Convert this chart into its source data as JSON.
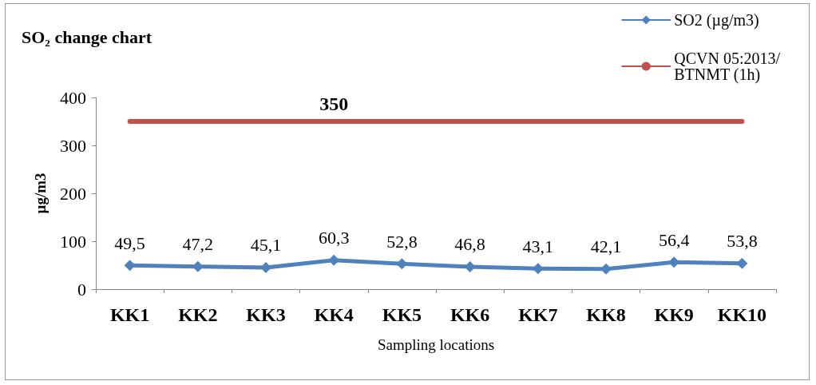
{
  "chart_data": {
    "type": "line",
    "title": "SO₂ change chart",
    "xlabel": "Sampling locations",
    "ylabel": "µg/m3",
    "categories": [
      "KK1",
      "KK2",
      "KK3",
      "KK4",
      "KK5",
      "KK6",
      "KK7",
      "KK8",
      "KK9",
      "KK10"
    ],
    "series": [
      {
        "name": "SO2 (µg/m3)",
        "color": "#4f81bd",
        "marker": "diamond",
        "values": [
          49.5,
          47.2,
          45.1,
          60.3,
          52.8,
          46.8,
          43.1,
          42.1,
          56.4,
          53.8
        ],
        "value_labels": [
          "49,5",
          "47,2",
          "45,1",
          "60,3",
          "52,8",
          "46,8",
          "43,1",
          "42,1",
          "56,4",
          "53,8"
        ]
      },
      {
        "name": "QCVN 05:2013/BTNMT (1h)",
        "color": "#c0504d",
        "marker": "none",
        "values": [
          350,
          350,
          350,
          350,
          350,
          350,
          350,
          350,
          350,
          350
        ],
        "value_labels": [
          null,
          null,
          null,
          "350",
          null,
          null,
          null,
          null,
          null,
          null
        ]
      }
    ],
    "ylim": [
      0,
      400
    ],
    "yticks": [
      0,
      100,
      200,
      300,
      400
    ],
    "grid": false,
    "legend": "top right"
  }
}
